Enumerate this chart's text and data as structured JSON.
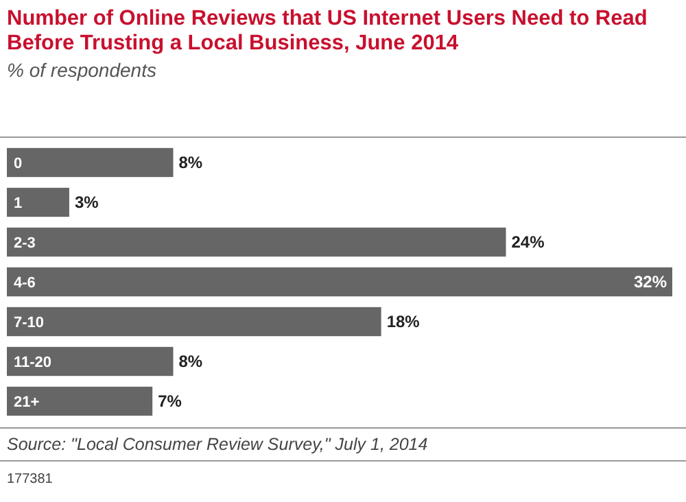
{
  "chart_data": {
    "type": "bar",
    "orientation": "horizontal",
    "title": "Number of Online Reviews that US Internet Users Need to Read Before Trusting a Local Business, June 2014",
    "subtitle": "% of respondents",
    "categories": [
      "0",
      "1",
      "2-3",
      "4-6",
      "7-10",
      "11-20",
      "21+"
    ],
    "values": [
      8,
      3,
      24,
      32,
      18,
      8,
      7
    ],
    "value_labels": [
      "8%",
      "3%",
      "24%",
      "32%",
      "18%",
      "8%",
      "7%"
    ],
    "color": "#666666",
    "annotations": [
      "Source: \"Local Consumer Review Survey,\" July 1, 2014",
      "177381"
    ]
  }
}
